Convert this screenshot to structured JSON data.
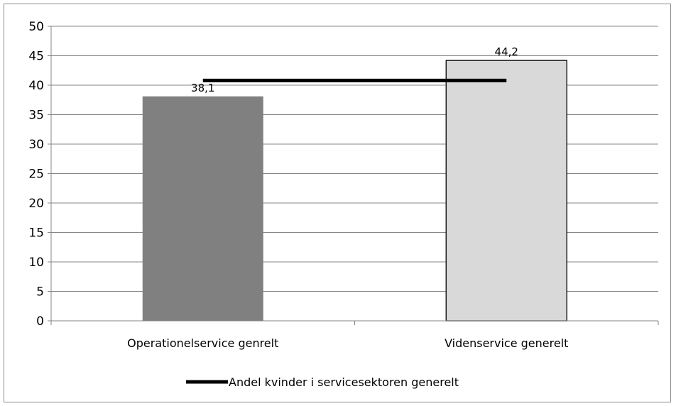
{
  "chart_data": {
    "type": "bar",
    "categories": [
      "Operationelservice genrelt",
      "Videnservice generelt"
    ],
    "values": [
      38.1,
      44.2
    ],
    "value_labels": [
      "38,1",
      "44,2"
    ],
    "bar_colors": [
      "#808080",
      "#d9d9d9"
    ],
    "reference_line": {
      "name": "Andel kvinder i servicesektoren generelt",
      "value": 40.8,
      "color": "#000000"
    },
    "title": "",
    "xlabel": "",
    "ylabel": "",
    "ylim": [
      0,
      50
    ],
    "yticks": [
      0,
      5,
      10,
      15,
      20,
      25,
      30,
      35,
      40,
      45,
      50
    ],
    "grid": true,
    "legend_position": "bottom"
  }
}
